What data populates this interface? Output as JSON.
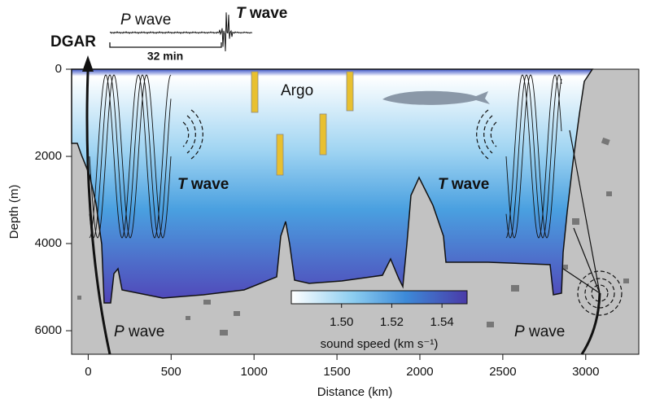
{
  "figure": {
    "x_axis": {
      "label": "Distance (km)",
      "xlim": [
        -100,
        3320
      ],
      "xticks": [
        0,
        500,
        1000,
        1500,
        2000,
        2500,
        3000
      ]
    },
    "y_axis": {
      "label": "Depth (m)",
      "ylim": [
        0,
        6540
      ],
      "yticks": [
        0,
        2000,
        4000,
        6000
      ]
    },
    "station": "DGAR",
    "seismogram": {
      "p_label": {
        "symbol": "P",
        "text": "wave"
      },
      "t_label": {
        "symbol": "T",
        "text": "wave"
      },
      "scale": "32 min"
    },
    "labels": {
      "argo": "Argo",
      "t_wave_left": {
        "symbol": "T",
        "text": "wave"
      },
      "t_wave_right": {
        "symbol": "T",
        "text": "wave"
      },
      "p_wave_left": {
        "symbol": "P",
        "text": "wave"
      },
      "p_wave_right": {
        "symbol": "P",
        "text": "wave"
      }
    },
    "colorbar": {
      "label": "sound speed (km s⁻¹)",
      "lim": [
        1.48,
        1.55
      ],
      "ticks": [
        {
          "value": 1.5,
          "label": "1.50"
        },
        1.52,
        1.54
      ]
    }
  }
}
